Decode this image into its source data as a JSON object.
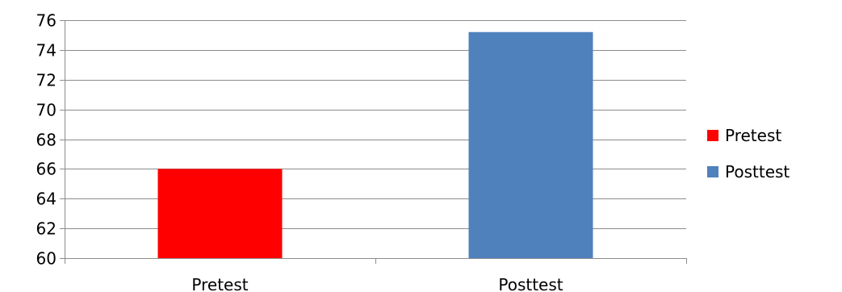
{
  "chart_data": {
    "type": "bar",
    "title": "",
    "xlabel": "",
    "ylabel": "",
    "categories": [
      "Pretest",
      "Posttest"
    ],
    "values": [
      66,
      75.2
    ],
    "series": [
      {
        "name": "Pretest",
        "color": "#ff0000"
      },
      {
        "name": "Posttest",
        "color": "#4f81bd"
      }
    ],
    "ylim": [
      60,
      76
    ],
    "yticks": [
      60,
      62,
      64,
      66,
      68,
      70,
      72,
      74,
      76
    ],
    "grid": true,
    "legend_position": "right"
  }
}
